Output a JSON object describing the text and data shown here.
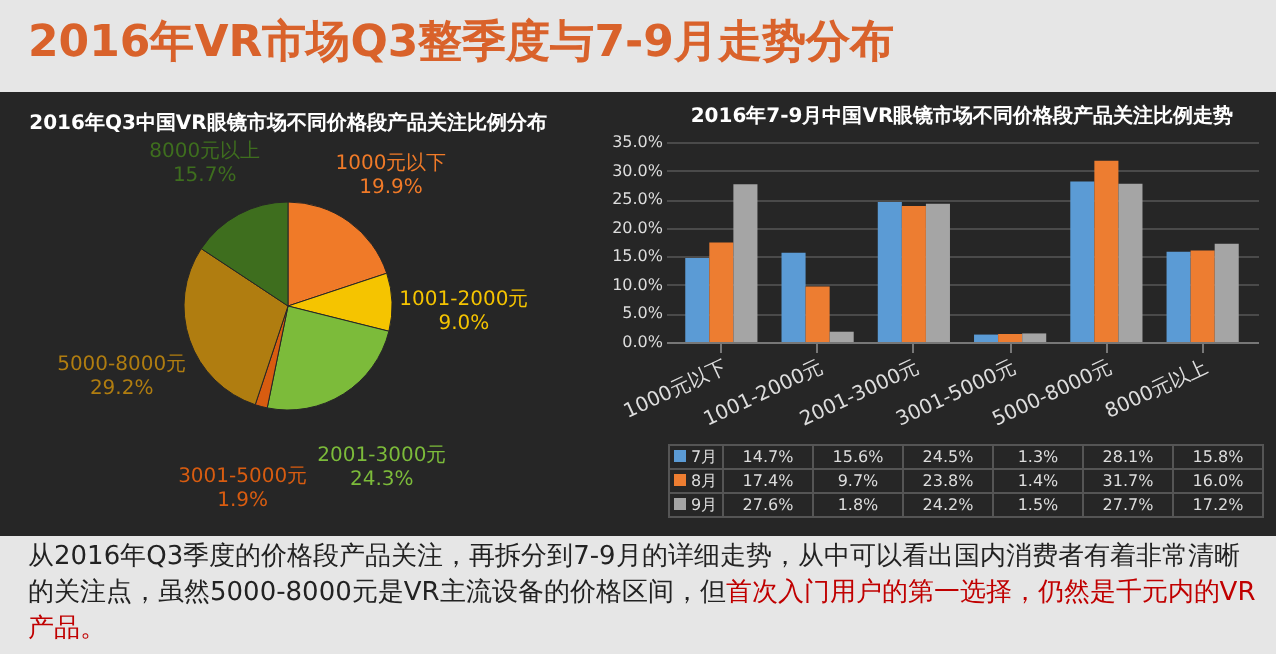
{
  "chart_data": [
    {
      "type": "other",
      "title": "2016年VR市场Q3整季度与7-9月走势分布",
      "annotations": [
        "从2016年Q3季度的价格段产品关注，再拆分到7-9月的详细走势，从中可以看出国内消费者有着非常清晰的关注点，虽然5000-8000元是VR主流设备的价格区间，但",
        "首次入门用户的第一选择，仍然是千元内的VR产品。"
      ]
    },
    {
      "type": "pie",
      "title": "2016年Q3中国VR眼镜市场不同价格段产品关注比例分布",
      "categories": [
        "1000元以下",
        "1001-2000元",
        "2001-3000元",
        "3001-5000元",
        "5000-8000元",
        "8000元以上"
      ],
      "values": [
        19.9,
        9.0,
        24.3,
        1.9,
        29.2,
        15.7
      ],
      "value_labels": [
        "19.9%",
        "9.0%",
        "24.3%",
        "1.9%",
        "29.2%",
        "15.7%"
      ],
      "colors": [
        "#f07a28",
        "#f5c400",
        "#7cbb3a",
        "#d85c10",
        "#b07d10",
        "#3e6e1e"
      ]
    },
    {
      "type": "bar",
      "title": "2016年7-9月中国VR眼镜市场不同价格段产品关注比例走势",
      "categories": [
        "1000元以下",
        "1001-2000元",
        "2001-3000元",
        "3001-5000元",
        "5000-8000元",
        "8000元以上"
      ],
      "ylim": [
        0,
        35
      ],
      "yticks": [
        {
          "value": 0,
          "label": "0.0%"
        },
        {
          "value": 5,
          "label": "5.0%"
        },
        {
          "value": 10,
          "label": "10.0%"
        },
        {
          "value": 15,
          "label": "15.0%"
        },
        {
          "value": 20,
          "label": "20.0%"
        },
        {
          "value": 25,
          "label": "25.0%"
        },
        {
          "value": 30,
          "label": "30.0%"
        },
        {
          "value": 35,
          "label": "35.0%"
        }
      ],
      "grid": "y",
      "legend": "bottom",
      "series": [
        {
          "name": "7月",
          "color": "#5b9bd5",
          "values": [
            14.7,
            15.6,
            24.5,
            1.3,
            28.1,
            15.8
          ],
          "value_labels": [
            "14.7%",
            "15.6%",
            "24.5%",
            "1.3%",
            "28.1%",
            "15.8%"
          ]
        },
        {
          "name": "8月",
          "color": "#ed7d31",
          "values": [
            17.4,
            9.7,
            23.8,
            1.4,
            31.7,
            16.0
          ],
          "value_labels": [
            "17.4%",
            "9.7%",
            "23.8%",
            "1.4%",
            "31.7%",
            "16.0%"
          ]
        },
        {
          "name": "9月",
          "color": "#a5a5a5",
          "values": [
            27.6,
            1.8,
            24.2,
            1.5,
            27.7,
            17.2
          ],
          "value_labels": [
            "27.6%",
            "1.8%",
            "24.2%",
            "1.5%",
            "27.7%",
            "17.2%"
          ]
        }
      ]
    }
  ]
}
